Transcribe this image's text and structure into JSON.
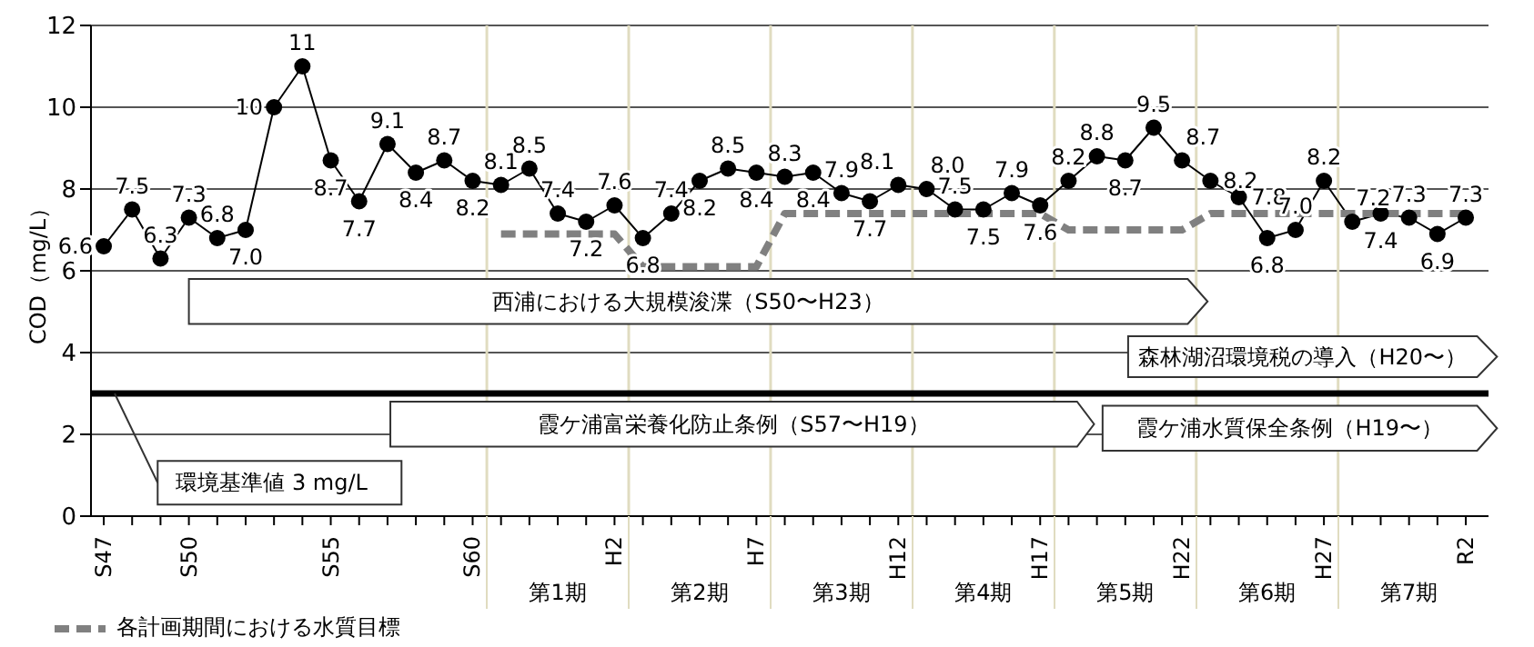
{
  "chart_data": {
    "type": "line",
    "ylabel": "COD（mg/L）",
    "categories": [
      "S47",
      null,
      null,
      "S50",
      null,
      null,
      null,
      null,
      "S55",
      null,
      null,
      null,
      null,
      "S60",
      null,
      null,
      null,
      null,
      "H2",
      null,
      null,
      null,
      null,
      "H7",
      null,
      null,
      null,
      null,
      "H12",
      null,
      null,
      null,
      null,
      "H17",
      null,
      null,
      null,
      null,
      "H22",
      null,
      null,
      null,
      null,
      "H27",
      null,
      null,
      null,
      null,
      "R2"
    ],
    "series": [
      {
        "color": "#000000",
        "marker": "circle",
        "line_style": "solid",
        "values": [
          6.6,
          7.5,
          6.3,
          7.3,
          6.8,
          7.0,
          10,
          11,
          8.7,
          7.7,
          9.1,
          8.4,
          8.7,
          8.2,
          8.1,
          8.5,
          7.4,
          7.2,
          7.6,
          6.8,
          7.4,
          8.2,
          8.5,
          8.4,
          8.3,
          8.4,
          7.9,
          7.7,
          8.1,
          8.0,
          7.5,
          7.5,
          7.9,
          7.6,
          8.2,
          8.8,
          8.7,
          9.5,
          8.7,
          8.2,
          7.8,
          6.8,
          7.0,
          8.2,
          7.2,
          7.4,
          7.3,
          6.9,
          7.3
        ],
        "value_labels": [
          "6.6",
          "7.5",
          "6.3",
          "7.3",
          "6.8",
          "7.0",
          "10",
          "11",
          "8.7",
          "7.7",
          "9.1",
          "8.4",
          "8.7",
          "8.2",
          "8.1",
          "8.5",
          "7.4",
          "7.2",
          "7.6",
          "6.8",
          "7.4",
          "8.2",
          "8.5",
          "8.4",
          "8.3",
          "8.4",
          "7.9",
          "7.7",
          "8.1",
          "8.0",
          "7.5",
          "7.5",
          "7.9",
          "7.6",
          "8.2",
          "8.8",
          "8.7",
          "9.5",
          "8.7",
          "8.2",
          "7.8",
          "6.8",
          "7.0",
          "8.2",
          "7.2",
          "7.4",
          "7.3",
          "6.9",
          "7.3"
        ]
      },
      {
        "name": "各計画期間における水質目標",
        "color": "#808080",
        "marker": "none",
        "line_style": "dashed",
        "values": [
          null,
          null,
          null,
          null,
          null,
          null,
          null,
          null,
          null,
          null,
          null,
          null,
          null,
          null,
          6.9,
          6.9,
          6.9,
          6.9,
          6.9,
          6.1,
          6.1,
          6.1,
          6.1,
          6.1,
          7.4,
          7.4,
          7.4,
          7.4,
          7.4,
          7.4,
          7.4,
          7.4,
          7.4,
          7.4,
          7.0,
          7.0,
          7.0,
          7.0,
          7.0,
          7.4,
          7.4,
          7.4,
          7.4,
          7.4,
          7.4,
          7.4,
          7.4,
          7.4,
          7.4
        ]
      }
    ],
    "ylim": [
      0,
      12
    ],
    "yticks": [
      0,
      2,
      4,
      6,
      8,
      10,
      12
    ],
    "grid": "y",
    "legend": "bottom left",
    "ref_lines": [
      {
        "axis": "y",
        "value": 3,
        "label": "環境基準値 3 mg/L",
        "color": "#000000",
        "line_style": "solid"
      }
    ],
    "annotations": [
      "西浦における大規模浚渫（S50〜H23）",
      "森林湖沼環境税の導入（H20〜）",
      "霞ケ浦富栄養化防止条例（S57〜H19）",
      "霞ケ浦水質保全条例（H19〜）",
      "第1期",
      "第2期",
      "第3期",
      "第4期",
      "第5期",
      "第6期",
      "第7期"
    ]
  }
}
